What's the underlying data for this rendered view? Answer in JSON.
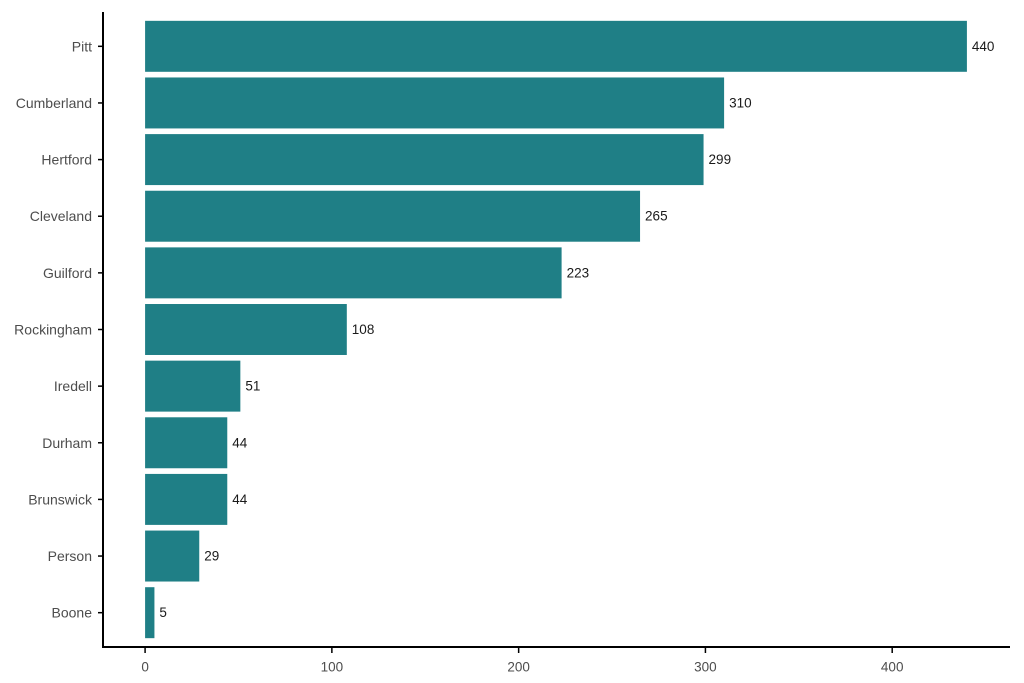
{
  "chart_data": {
    "type": "bar",
    "orientation": "horizontal",
    "categories": [
      "Pitt",
      "Cumberland",
      "Hertford",
      "Cleveland",
      "Guilford",
      "Rockingham",
      "Iredell",
      "Durham",
      "Brunswick",
      "Person",
      "Boone"
    ],
    "values": [
      440,
      310,
      299,
      265,
      223,
      108,
      51,
      44,
      44,
      29,
      5
    ],
    "value_labels": [
      "440",
      "310",
      "299",
      "265",
      "223",
      "108",
      "51",
      "44",
      "44",
      "29",
      "5"
    ],
    "x_ticks": [
      "0",
      "100",
      "200",
      "300",
      "400"
    ],
    "x_tick_values": [
      0,
      100,
      200,
      300,
      400
    ],
    "xlim": [
      -22,
      462
    ],
    "title": "",
    "xlabel": "",
    "ylabel": "",
    "grid": false,
    "legend": "none",
    "bar_color": "#1f7f86"
  }
}
